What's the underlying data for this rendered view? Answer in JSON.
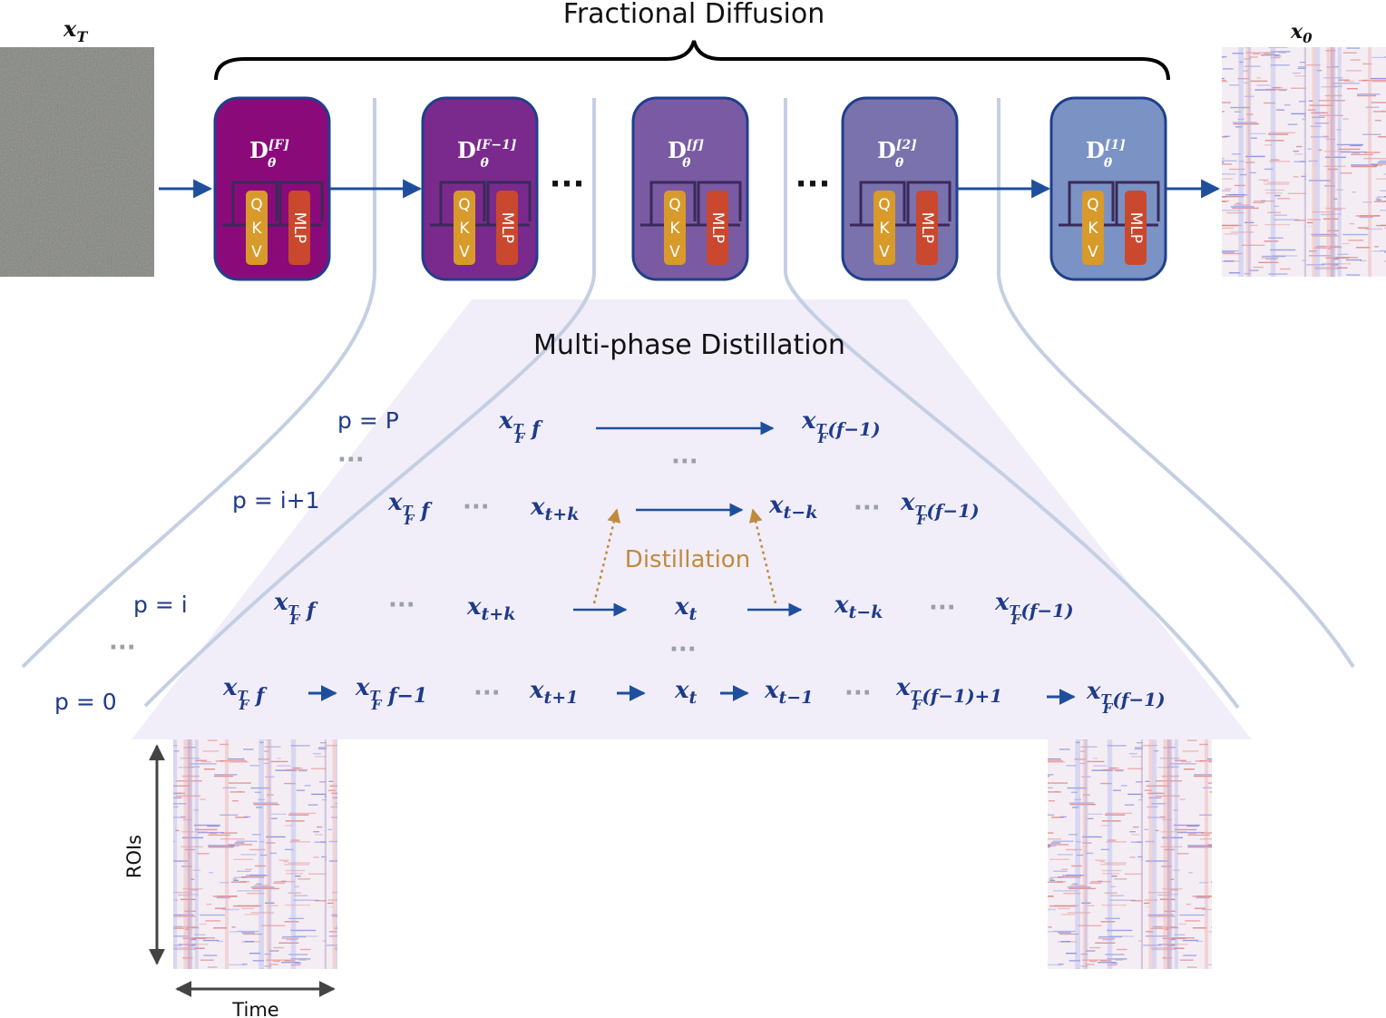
{
  "title_top": "Fractional Diffusion",
  "title_mid": "Multi-phase Distillation",
  "x_T_label": "x",
  "x_T_sub": "T",
  "x_0_label": "x",
  "x_0_sub": "0",
  "blocks": [
    {
      "D": "D",
      "sup": "[F]",
      "sub": "θ",
      "color": "#8b0a7a"
    },
    {
      "D": "D",
      "sup": "[F−1]",
      "sub": "θ",
      "color": "#7a2a8c"
    },
    {
      "D": "D",
      "sup": "[f]",
      "sub": "θ",
      "color": "#7a5aa3"
    },
    {
      "D": "D",
      "sup": "[2]",
      "sub": "θ",
      "color": "#7a72ad"
    },
    {
      "D": "D",
      "sup": "[1]",
      "sub": "θ",
      "color": "#7b93c4"
    }
  ],
  "qkv_letters": [
    "Q",
    "K",
    "V"
  ],
  "mlp_label": "MLP",
  "top_dots": "···",
  "phase_labels": {
    "pP": "p = P",
    "pi1": "p = i+1",
    "pi": "p = i",
    "p0": "p = 0",
    "dots": "···"
  },
  "distillation_label": "Distillation",
  "axis_rois": "ROIs",
  "axis_time": "Time",
  "colors": {
    "arrow": "#1f4e9c",
    "distill": "#c08a3e",
    "trapezoid": "#f1eefa",
    "curves": "#c5cfe3",
    "qkv": "#d89a2a",
    "mlp": "#c9482e",
    "block_border": "#1f3f8c"
  }
}
